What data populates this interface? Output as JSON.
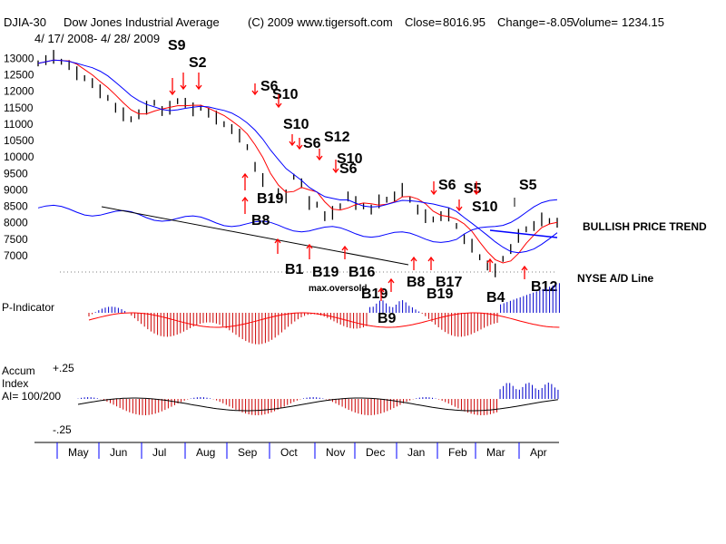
{
  "header": {
    "ticker": "DJIA-30",
    "name": "Dow Jones Industrial Average",
    "copyright": "(C) 2009 www.tigersoft.com",
    "close_label": "Close=",
    "close": "8016.95",
    "change_label": "Change=",
    "change": "-8.05",
    "volume_label": "Volume=",
    "volume": "1234.15",
    "date_range": "4/ 17/ 2008- 4/ 28/ 2009"
  },
  "colors": {
    "price": "#000000",
    "ma_fast": "#ff0000",
    "ma_slow": "#0000ff",
    "breadth": "#0000ff",
    "positive_bar": "#0000cc",
    "negative_bar": "#cc0000",
    "arrow_red": "#ff0000",
    "arrow_black": "#000000"
  },
  "annotations": {
    "bullish": "BULLISH PRICE TREND",
    "ad_line": "NYSE A/D Line",
    "maxoversold": "max.oversold"
  },
  "panels": {
    "p_indicator": "P-Indicator",
    "accum_line1": "Accum",
    "accum_line2": "Index",
    "accum_line3": "AI= 100/200",
    "accum_top": "+.25",
    "accum_bottom": "-.25"
  },
  "chart_data": {
    "type": "line",
    "title": "DJIA-30 Dow Jones Industrial Average",
    "ylim": [
      6500,
      13400
    ],
    "yticks": [
      13000,
      12500,
      12000,
      11500,
      11000,
      10500,
      10000,
      9500,
      9000,
      8500,
      8000,
      7500,
      7000
    ],
    "months": [
      "May",
      "Jun",
      "Jul",
      "Aug",
      "Sep",
      "Oct",
      "Nov",
      "Dec",
      "Jan",
      "Feb",
      "Mar",
      "Apr"
    ],
    "series": [
      {
        "values": [
          12850,
          12950,
          13050,
          12900,
          12800,
          12550,
          12400,
          12250,
          12000,
          11800,
          11500,
          11300,
          11150,
          11300,
          11500,
          11650,
          11400,
          11500,
          11700,
          11650,
          11450,
          11500,
          11350,
          11200,
          11000,
          10850,
          10650,
          10300,
          9700,
          9300,
          8700,
          8900,
          8800,
          9400,
          9200,
          8600,
          8550,
          8200,
          8300,
          8500,
          8800,
          8600,
          8500,
          8400,
          8650,
          8700,
          8800,
          9000,
          8700,
          8400,
          8200,
          8100,
          8200,
          8250,
          7900,
          7500,
          7300,
          6950,
          6700,
          6550,
          6900,
          7200,
          7600,
          7800,
          7900,
          8100,
          8050,
          8000
        ]
      }
    ],
    "signals": [
      {
        "label": "S9",
        "x": 0.216
      },
      {
        "label": "S2",
        "x": 0.27
      },
      {
        "label": "S6",
        "x": 0.375
      },
      {
        "label": "S10",
        "x": 0.39
      },
      {
        "label": "S10",
        "x": 0.41
      },
      {
        "label": "S6",
        "x": 0.442
      },
      {
        "label": "S12",
        "x": 0.468
      },
      {
        "label": "S10",
        "x": 0.484
      },
      {
        "label": "S6",
        "x": 0.49
      },
      {
        "label": "B19",
        "x": 0.373
      },
      {
        "label": "B8",
        "x": 0.36
      },
      {
        "label": "B1",
        "x": 0.43
      },
      {
        "label": "B19",
        "x": 0.47
      },
      {
        "label": "B16",
        "x": 0.52
      },
      {
        "label": "B19",
        "x": 0.547
      },
      {
        "label": "B9",
        "x": 0.557
      },
      {
        "label": "B8",
        "x": 0.6
      },
      {
        "label": "B17",
        "x": 0.64
      },
      {
        "label": "B19",
        "x": 0.64
      },
      {
        "label": "S6",
        "x": 0.65
      },
      {
        "label": "S5",
        "x": 0.695
      },
      {
        "label": "S10",
        "x": 0.71
      },
      {
        "label": "S5",
        "x": 0.775
      },
      {
        "label": "B4",
        "x": 0.73
      },
      {
        "label": "B12",
        "x": 0.8
      }
    ]
  }
}
